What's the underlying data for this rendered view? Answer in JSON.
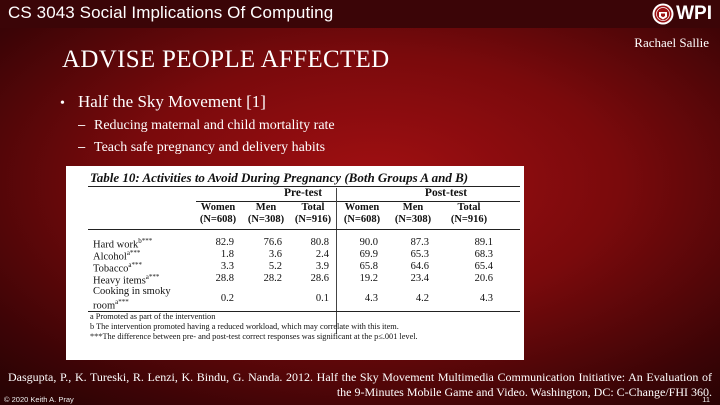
{
  "header": {
    "course_title": "CS 3043 Social Implications Of Computing",
    "logo_text": "WPI",
    "author": "Rachael Sallie"
  },
  "slide": {
    "title": "ADVISE PEOPLE AFFECTED",
    "bullet": "Half the Sky Movement [1]",
    "sub_bullets": [
      "Reducing maternal and child mortality rate",
      "Teach safe pregnancy and delivery habits"
    ]
  },
  "table": {
    "title": "Table 10: Activities to Avoid During Pregnancy (Both Groups A and B)",
    "groups": [
      "Pre-test",
      "Post-test"
    ],
    "columns": [
      {
        "name": "Women",
        "n": "(N=608)"
      },
      {
        "name": "Men",
        "n": "(N=308)"
      },
      {
        "name": "Total",
        "n": "(N=916)"
      },
      {
        "name": "Women",
        "n": "(N=608)"
      },
      {
        "name": "Men",
        "n": "(N=308)"
      },
      {
        "name": "Total",
        "n": "(N=916)"
      }
    ],
    "rows": [
      {
        "label": "Hard work",
        "sup": "b***",
        "values": [
          "82.9",
          "76.6",
          "80.8",
          "90.0",
          "87.3",
          "89.1"
        ]
      },
      {
        "label": "Alcohol",
        "sup": "a***",
        "values": [
          "1.8",
          "3.6",
          "2.4",
          "69.9",
          "65.3",
          "68.3"
        ]
      },
      {
        "label": "Tobacco",
        "sup": "a***",
        "values": [
          "3.3",
          "5.2",
          "3.9",
          "65.8",
          "64.6",
          "65.4"
        ]
      },
      {
        "label": "Heavy items",
        "sup": "a***",
        "values": [
          "28.8",
          "28.2",
          "28.6",
          "19.2",
          "23.4",
          "20.6"
        ]
      },
      {
        "label": "Cooking in smoky room",
        "sup": "a***",
        "values": [
          "0.2",
          "",
          "0.1",
          "4.3",
          "4.2",
          "4.3"
        ]
      }
    ],
    "notes": [
      "a Promoted as part of the intervention",
      "b The intervention promoted having a reduced workload, which may correlate with this item.",
      "***The difference between pre- and post-test correct responses was significant at the p≤.001 level."
    ]
  },
  "citation": "Dasgupta, P., K. Tureski, R. Lenzi, K. Bindu, G. Nanda. 2012. Half the Sky Movement Multimedia Communication Initiative: An Evaluation of the 9-Minutes Mobile Game and Video. Washington, DC: C-Change/FHI 360.",
  "footer": {
    "copyright": "© 2020 Keith A. Pray",
    "page_number": "11"
  },
  "colors": {
    "background": "#8b0c0f",
    "topbar": "#3b0507",
    "text": "#ffffff"
  }
}
